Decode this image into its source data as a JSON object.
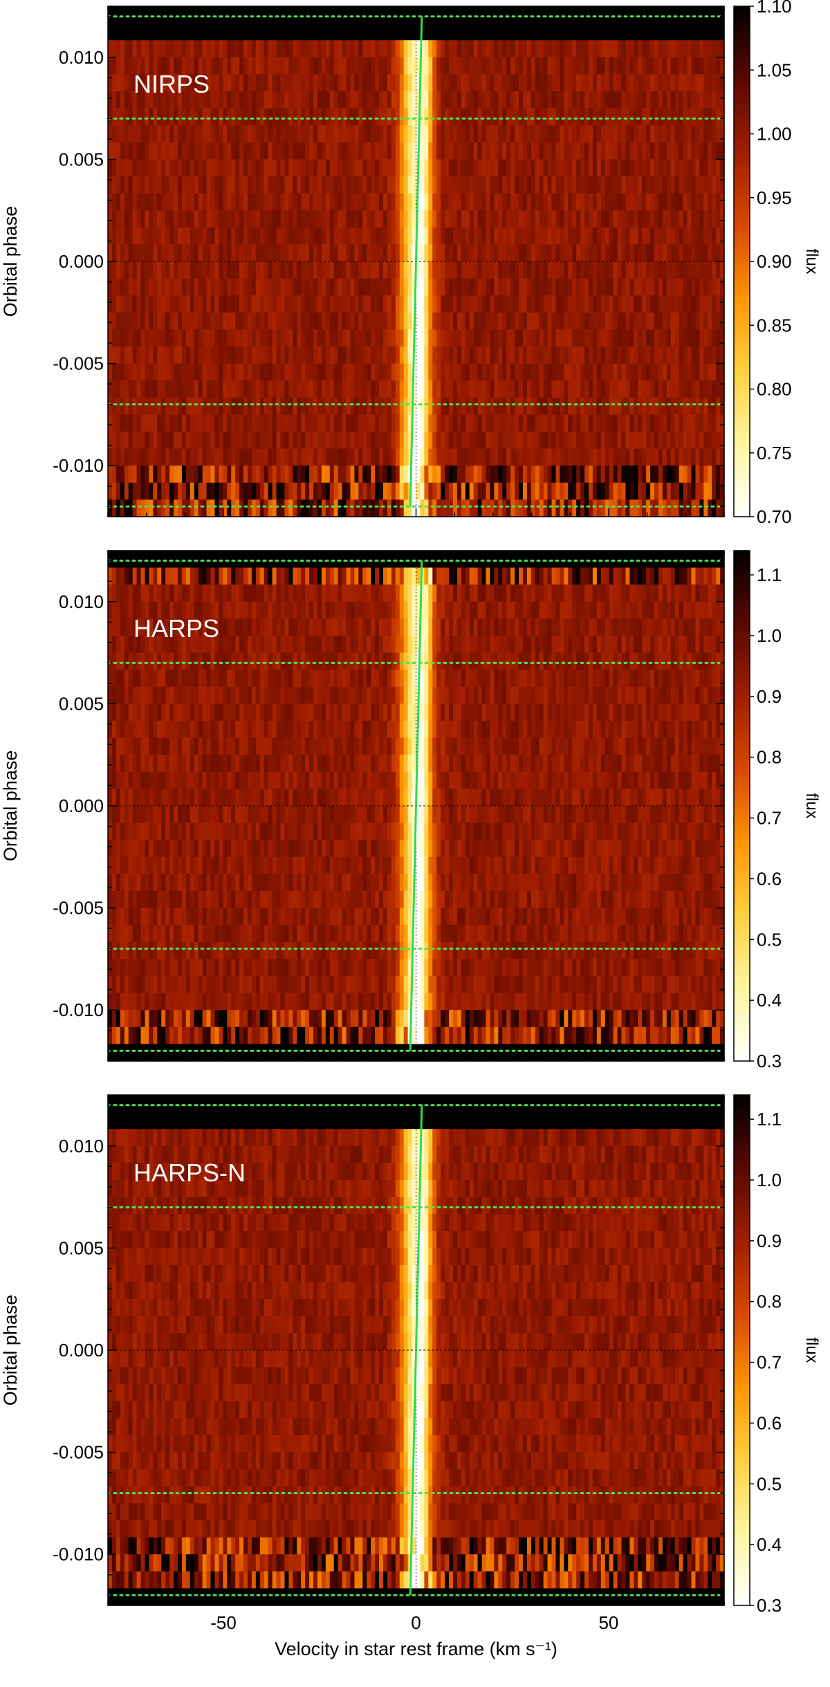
{
  "chart_data": [
    {
      "type": "heatmap",
      "panel_label": "NIRPS",
      "xlabel": "Velocity in star rest frame (km s⁻¹)",
      "ylabel": "Orbital phase",
      "colorbar_label": "flux",
      "xlim": [
        -80,
        80
      ],
      "ylim": [
        -0.0125,
        0.0125
      ],
      "x_ticks": [
        -50,
        0,
        50
      ],
      "y_ticks": [
        -0.01,
        -0.005,
        0.0,
        0.005,
        0.01
      ],
      "y_tick_labels": [
        "-0.010",
        "-0.005",
        "0.000",
        "0.005",
        "0.010"
      ],
      "colorbar_range": [
        0.7,
        1.1
      ],
      "colorbar_ticks": [
        0.7,
        0.75,
        0.8,
        0.85,
        0.9,
        0.95,
        1.0,
        1.05,
        1.1
      ],
      "colorbar_tick_labels": [
        "0.70",
        "0.75",
        "0.80",
        "0.85",
        "0.90",
        "0.95",
        "1.00",
        "1.05",
        "1.10"
      ],
      "no_data_phase_above": 0.011,
      "no_data_phase_below": null,
      "contact_phases": [
        0.012,
        0.007,
        -0.007,
        -0.012
      ],
      "midtransit_phase": 0.0,
      "planet_track_velocity": [
        -1.5,
        1.5
      ],
      "line_center_velocity": 0.0,
      "noise_rows_below_phase": -0.0099,
      "seed": 11
    },
    {
      "type": "heatmap",
      "panel_label": "HARPS",
      "xlabel": "Velocity in star rest frame (km s⁻¹)",
      "ylabel": "Orbital phase",
      "colorbar_label": "flux",
      "xlim": [
        -80,
        80
      ],
      "ylim": [
        -0.0125,
        0.0125
      ],
      "x_ticks": [
        -50,
        0,
        50
      ],
      "y_ticks": [
        -0.01,
        -0.005,
        0.0,
        0.005,
        0.01
      ],
      "y_tick_labels": [
        "-0.010",
        "-0.005",
        "0.000",
        "0.005",
        "0.010"
      ],
      "colorbar_range": [
        0.3,
        1.14
      ],
      "colorbar_ticks": [
        0.3,
        0.4,
        0.5,
        0.6,
        0.7,
        0.8,
        0.9,
        1.0,
        1.1
      ],
      "colorbar_tick_labels": [
        "0.3",
        "0.4",
        "0.5",
        "0.6",
        "0.7",
        "0.8",
        "0.9",
        "1.0",
        "1.1"
      ],
      "no_data_phase_above": 0.012,
      "no_data_phase_below": -0.012,
      "contact_phases": [
        0.012,
        0.007,
        -0.007,
        -0.012
      ],
      "midtransit_phase": 0.0,
      "planet_track_velocity": [
        -1.5,
        1.5
      ],
      "line_center_velocity": 0.0,
      "noise_rows_below_phase": -0.0099,
      "noise_rows_above_phase": 0.011,
      "seed": 23
    },
    {
      "type": "heatmap",
      "panel_label": "HARPS-N",
      "xlabel": "Velocity in star rest frame (km s⁻¹)",
      "ylabel": "Orbital phase",
      "colorbar_label": "flux",
      "xlim": [
        -80,
        80
      ],
      "ylim": [
        -0.0125,
        0.0125
      ],
      "x_ticks": [
        -50,
        0,
        50
      ],
      "x_tick_labels": [
        "-50",
        "0",
        "50"
      ],
      "y_ticks": [
        -0.01,
        -0.005,
        0.0,
        0.005,
        0.01
      ],
      "y_tick_labels": [
        "-0.010",
        "-0.005",
        "0.000",
        "0.005",
        "0.010"
      ],
      "colorbar_range": [
        0.3,
        1.14
      ],
      "colorbar_ticks": [
        0.3,
        0.4,
        0.5,
        0.6,
        0.7,
        0.8,
        0.9,
        1.0,
        1.1
      ],
      "colorbar_tick_labels": [
        "0.3",
        "0.4",
        "0.5",
        "0.6",
        "0.7",
        "0.8",
        "0.9",
        "1.0",
        "1.1"
      ],
      "no_data_phase_above": 0.0107,
      "no_data_phase_below": -0.012,
      "contact_phases": [
        0.012,
        0.007,
        -0.007,
        -0.012
      ],
      "midtransit_phase": 0.0,
      "planet_track_velocity": [
        -1.5,
        1.5
      ],
      "line_center_velocity": 0.0,
      "noise_rows_below_phase": -0.0088,
      "seed": 37
    }
  ],
  "colors": {
    "contact_lines": "#55dd55",
    "planet_track": "#33dd44",
    "colormap": [
      "#ffffff",
      "#fff5a0",
      "#ffd040",
      "#ff9500",
      "#d84800",
      "#a01e00",
      "#5a0800",
      "#000000"
    ]
  }
}
